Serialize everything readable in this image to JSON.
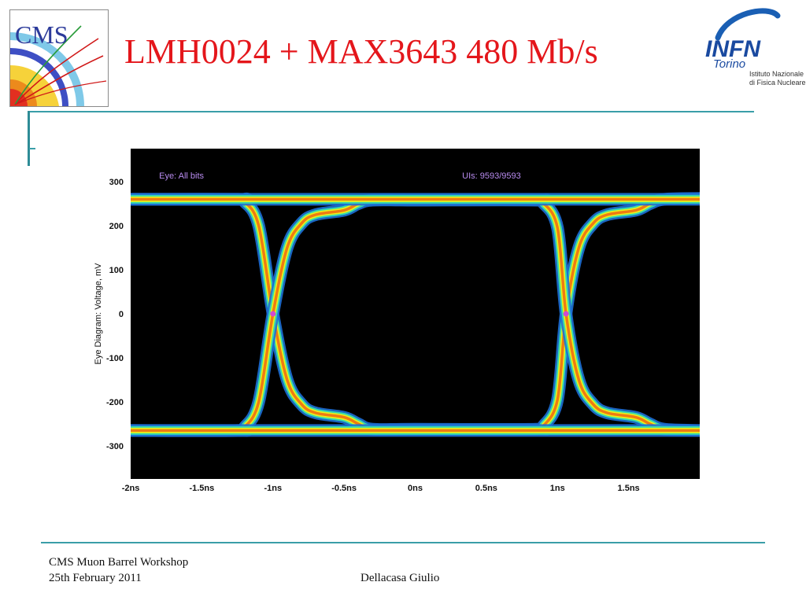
{
  "slide": {
    "title": "LMH0024 + MAX3643 480 Mb/s",
    "cms_logo_text": "CMS",
    "infn_logo": {
      "name": "INFN",
      "sub": "Torino",
      "line1": "Istituto Nazionale",
      "line2": "di Fisica Nucleare"
    }
  },
  "footer": {
    "line1": "CMS Muon Barrel Workshop",
    "line2": "25th February 2011",
    "author": "Dellacasa Giulio"
  },
  "colors": {
    "title": "#e4161b",
    "rule": "#3a9ea8",
    "plot_bg": "#000000",
    "annotation": "#b98cf0",
    "trace_outer": "#1d6fd6",
    "trace_mid": "#35d8b0",
    "trace_inner": "#e8f01a",
    "trace_core": "#f07a12",
    "trace_hot": "#e01a10",
    "crossing": "#d24ad0"
  },
  "chart_data": {
    "type": "line",
    "title": "",
    "annotations": [
      "Eye: All bits",
      "UIs: 9593/9593"
    ],
    "xlabel": "",
    "ylabel": "Eye Diagram: Voltage, mV",
    "x_unit": "ns",
    "xlim": [
      -2.0,
      2.0
    ],
    "ylim": [
      -375,
      375
    ],
    "x_ticks": [
      -2,
      -1.5,
      -1,
      -0.5,
      0,
      0.5,
      1,
      1.5
    ],
    "x_tick_labels": [
      "-2ns",
      "-1.5ns",
      "-1ns",
      "-0.5ns",
      "0ns",
      "0.5ns",
      "1ns",
      "1.5ns"
    ],
    "y_ticks": [
      300,
      200,
      100,
      0,
      -100,
      -200,
      -300
    ],
    "y_tick_labels": [
      "300",
      "200",
      "100",
      "0",
      "-100",
      "-200",
      "-300"
    ],
    "grid": false,
    "levels_mV": {
      "high": 260,
      "low": -265
    },
    "crossings_ns": [
      -1.0,
      1.06
    ],
    "series": [
      {
        "x": [
          -2.0,
          -1.25,
          -1.2,
          -1.1,
          -1.0,
          -0.9,
          -0.8,
          -0.7,
          -0.5,
          -0.4,
          -0.3,
          0.0,
          0.85,
          0.9,
          1.0,
          1.06,
          1.15,
          1.25,
          1.35,
          1.55,
          1.65,
          1.75,
          2.0
        ],
        "y": [
          260,
          260,
          255,
          200,
          0,
          -150,
          -205,
          -225,
          -235,
          -250,
          -262,
          -262,
          -262,
          -255,
          -195,
          0,
          150,
          205,
          225,
          235,
          250,
          260,
          262
        ]
      },
      {
        "x": [
          -2.0,
          -1.25,
          -1.2,
          -1.1,
          -1.0,
          -0.9,
          -0.8,
          -0.7,
          -0.5,
          -0.4,
          -0.3,
          0.0,
          0.85,
          0.9,
          1.0,
          1.06,
          1.15,
          1.25,
          1.35,
          1.55,
          1.65,
          1.75,
          2.0
        ],
        "y": [
          -265,
          -265,
          -258,
          -200,
          0,
          150,
          205,
          225,
          235,
          250,
          258,
          258,
          258,
          252,
          195,
          0,
          -150,
          -205,
          -225,
          -235,
          -250,
          -262,
          -265
        ]
      },
      {
        "x": [
          -2.0,
          2.0
        ],
        "y": [
          260,
          260
        ]
      },
      {
        "x": [
          -2.0,
          2.0
        ],
        "y": [
          -265,
          -265
        ]
      }
    ]
  }
}
